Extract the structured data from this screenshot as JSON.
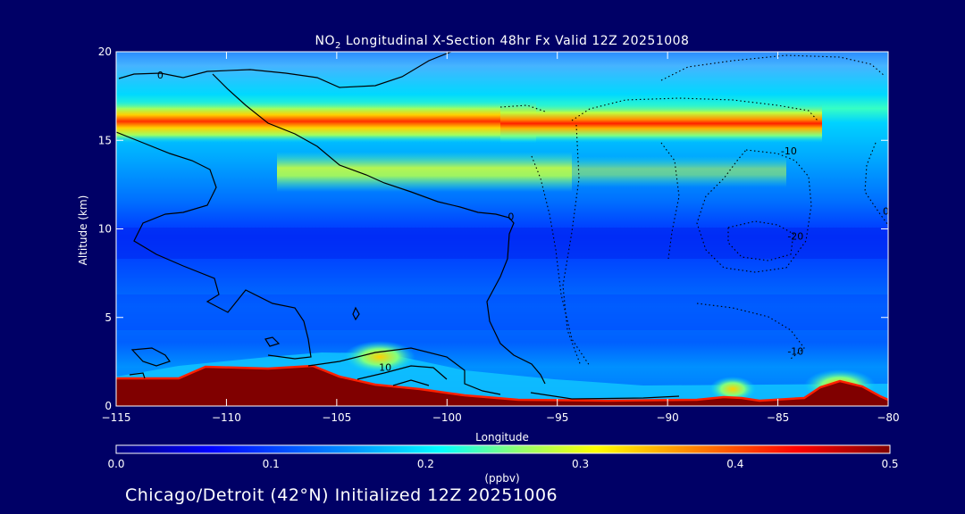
{
  "chart_data": {
    "type": "heatmap",
    "title_prefix": "NO",
    "title_sub": "2",
    "title_suffix": " Longitudinal X-Section 48hr  Fx Valid 12Z 20251008",
    "xlabel": "Longitude",
    "ylabel": "Altitude (km)",
    "xlim": [
      -115,
      -80
    ],
    "ylim": [
      0,
      20
    ],
    "x_ticks": [
      -115,
      -110,
      -105,
      -100,
      -95,
      -90,
      -85,
      -80
    ],
    "x_tick_labels": [
      "−115",
      "−110",
      "−105",
      "−100",
      "−95",
      "−90",
      "−85",
      "−80"
    ],
    "y_ticks": [
      0,
      5,
      10,
      15,
      20
    ],
    "y_tick_labels": [
      "0",
      "5",
      "10",
      "15",
      "20"
    ],
    "colorbar": {
      "ticks": [
        0.0,
        0.1,
        0.2,
        0.3,
        0.4,
        0.5
      ],
      "tick_labels": [
        "0.0",
        "0.1",
        "0.2",
        "0.3",
        "0.4",
        "0.5"
      ],
      "unit_label": "(ppbv)",
      "colors": [
        "#000080",
        "#0000ff",
        "#0080ff",
        "#00ffff",
        "#80ff80",
        "#ffff00",
        "#ff8000",
        "#ff0000",
        "#800000"
      ]
    },
    "bands": [
      {
        "name": "upper-band",
        "altitude_km": 15.8,
        "peak_value": 0.45
      },
      {
        "name": "mid-band",
        "altitude_km": 13.0,
        "peak_value": 0.25
      },
      {
        "name": "surface-layer",
        "altitude_km": 1.0,
        "peak_value": 0.5
      }
    ],
    "contour_labels": [
      {
        "text": "0",
        "lon": -113,
        "alt": 18.5
      },
      {
        "text": "10",
        "lon": -102.8,
        "alt": 2.0
      },
      {
        "text": "-10",
        "lon": -84.5,
        "alt": 14.2
      },
      {
        "text": "-20",
        "lon": -84.2,
        "alt": 9.4
      },
      {
        "text": "-10",
        "lon": -84.2,
        "alt": 2.9
      },
      {
        "text": "0",
        "lon": -80.1,
        "alt": 10.8
      },
      {
        "text": "0",
        "lon": -97.1,
        "alt": 10.5
      }
    ]
  },
  "footer": {
    "caption": "Chicago/Detroit (42°N) Initialized 12Z 20251006"
  }
}
